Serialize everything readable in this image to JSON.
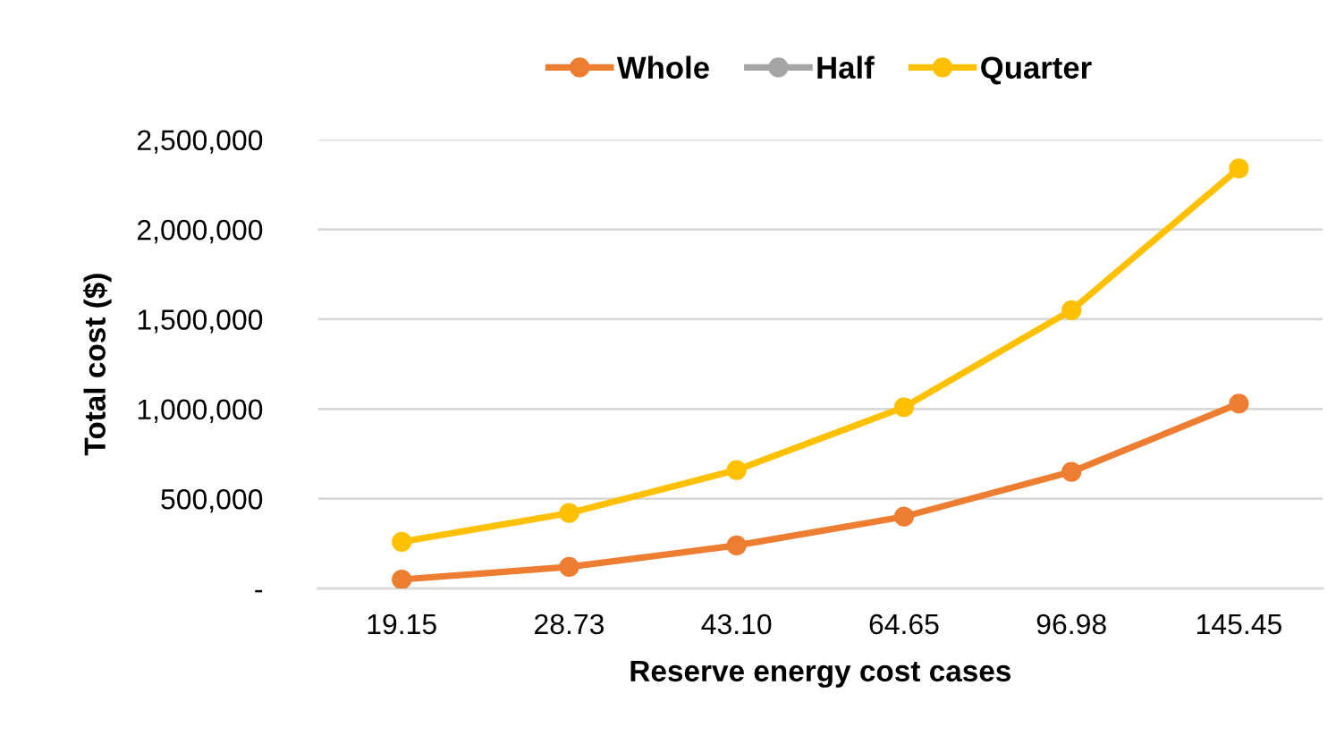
{
  "chart_data": {
    "type": "line",
    "xlabel": "Reserve energy cost cases",
    "ylabel": "Total cost ($)",
    "categories": [
      "19.15",
      "28.73",
      "43.10",
      "64.65",
      "96.98",
      "145.45"
    ],
    "series": [
      {
        "name": "Whole",
        "color": "#ed7d31",
        "values": [
          50000,
          120000,
          240000,
          400000,
          650000,
          1030000
        ]
      },
      {
        "name": "Half",
        "color": "#a5a5a5",
        "values": [
          null,
          null,
          null,
          null,
          null,
          null
        ]
      },
      {
        "name": "Quarter",
        "color": "#ffc000",
        "values": [
          260000,
          420000,
          660000,
          1010000,
          1550000,
          2340000
        ]
      }
    ],
    "ylim": [
      0,
      2500000
    ],
    "yticks": [
      {
        "value": 0,
        "label": "-"
      },
      {
        "value": 500000,
        "label": "500,000"
      },
      {
        "value": 1000000,
        "label": "1,000,000"
      },
      {
        "value": 1500000,
        "label": "1,500,000"
      },
      {
        "value": 2000000,
        "label": "2,000,000"
      },
      {
        "value": 2500000,
        "label": "2,500,000"
      }
    ],
    "grid": "y",
    "legend": "top",
    "marker": "circle",
    "line_style": "solid"
  }
}
